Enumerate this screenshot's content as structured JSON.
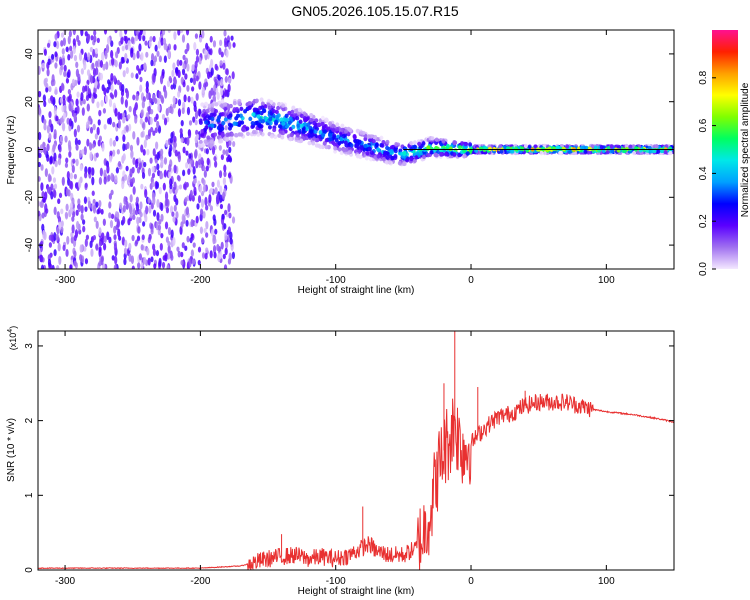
{
  "title": "GN05.2026.105.15.07.R15",
  "chart_data": [
    {
      "type": "heatmap",
      "xlabel": "Height of straight line (km)",
      "ylabel": "Frequency (Hz)",
      "xlim": [
        -320,
        150
      ],
      "ylim": [
        -50,
        50
      ],
      "xticks": [
        -300,
        -200,
        -100,
        0,
        100
      ],
      "yticks": [
        -40,
        -20,
        0,
        20,
        40
      ],
      "colorbar": {
        "label": "Normalized spectral amplitude",
        "range": [
          0,
          1
        ],
        "ticks": [
          "0.0",
          "0.2",
          "0.4",
          "0.6",
          "0.8"
        ],
        "colors": [
          "#f4e8ff",
          "#a070f0",
          "#5a00ff",
          "#0000ff",
          "#00a0ff",
          "#00e8e8",
          "#00ff60",
          "#80ff00",
          "#ffff00",
          "#ffa000",
          "#ff2000",
          "#ff1090"
        ]
      },
      "reference_line": {
        "frequency_hz": 0,
        "color": "#000000"
      },
      "ridge": {
        "x": [
          -200,
          -180,
          -160,
          -140,
          -120,
          -100,
          -80,
          -60,
          -50,
          -40,
          -30,
          -20,
          -10,
          0,
          20,
          50,
          100,
          150
        ],
        "frequency_hz": [
          10,
          12,
          14,
          12,
          9,
          5,
          2,
          -1,
          -2,
          -1,
          1,
          0.5,
          0,
          0,
          0,
          0,
          0,
          0
        ],
        "peak_amplitude": [
          0.35,
          0.45,
          0.55,
          0.5,
          0.45,
          0.4,
          0.45,
          0.5,
          0.6,
          0.65,
          0.7,
          0.75,
          0.8,
          0.85,
          0.9,
          0.9,
          0.9,
          0.85
        ]
      },
      "noise_region_x": [
        -320,
        -175
      ]
    },
    {
      "type": "line",
      "xlabel": "Height of straight line (km)",
      "ylabel": "SNR (10 * v/v)",
      "y_scale_label": "(x10",
      "y_scale_exponent": "4",
      "xlim": [
        -320,
        150
      ],
      "ylim": [
        0,
        3.2
      ],
      "xticks": [
        -300,
        -200,
        -100,
        0,
        100
      ],
      "yticks": [
        0,
        1,
        2,
        3
      ],
      "color": "#e83030",
      "series": [
        {
          "x": [
            -320,
            -250,
            -200,
            -170,
            -160,
            -150,
            -140,
            -130,
            -120,
            -110,
            -100,
            -90,
            -80,
            -75,
            -70,
            -60,
            -50,
            -40,
            -35,
            -30,
            -25,
            -20,
            -15,
            -12,
            -10,
            -5,
            0,
            10,
            20,
            30,
            40,
            50,
            60,
            70,
            80,
            90,
            100,
            110,
            120,
            130,
            140,
            150
          ],
          "y": [
            0.02,
            0.02,
            0.02,
            0.05,
            0.1,
            0.15,
            0.18,
            0.2,
            0.15,
            0.18,
            0.15,
            0.2,
            0.3,
            0.35,
            0.25,
            0.2,
            0.2,
            0.3,
            0.5,
            0.8,
            1.3,
            1.6,
            1.8,
            2.0,
            1.8,
            1.6,
            1.7,
            1.9,
            2.05,
            2.1,
            2.2,
            2.25,
            2.25,
            2.25,
            2.2,
            2.15,
            2.12,
            2.1,
            2.08,
            2.05,
            2.02,
            1.98
          ],
          "spikes": [
            {
              "x": -140,
              "y": 0.48
            },
            {
              "x": -80,
              "y": 0.85
            },
            {
              "x": -20,
              "y": 2.5
            },
            {
              "x": -12,
              "y": 3.2
            },
            {
              "x": 5,
              "y": 2.45
            },
            {
              "x": 40,
              "y": 2.4
            }
          ]
        }
      ]
    }
  ]
}
